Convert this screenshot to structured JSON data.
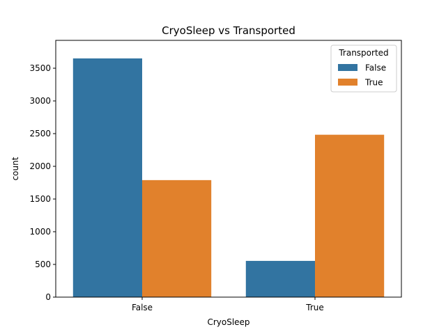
{
  "chart_data": {
    "type": "bar",
    "title": "CryoSleep vs Transported",
    "xlabel": "CryoSleep",
    "ylabel": "count",
    "categories": [
      "False",
      "True"
    ],
    "series": [
      {
        "name": "False",
        "values": [
          3650,
          554
        ],
        "color": "#3274a1"
      },
      {
        "name": "True",
        "values": [
          1789,
          2483
        ],
        "color": "#e1812c"
      }
    ],
    "ylim": [
      0,
      3926
    ],
    "yticks": [
      0,
      500,
      1000,
      1500,
      2000,
      2500,
      3000,
      3500
    ],
    "legend": {
      "title": "Transported",
      "placement": "top-right"
    },
    "grid": false
  }
}
